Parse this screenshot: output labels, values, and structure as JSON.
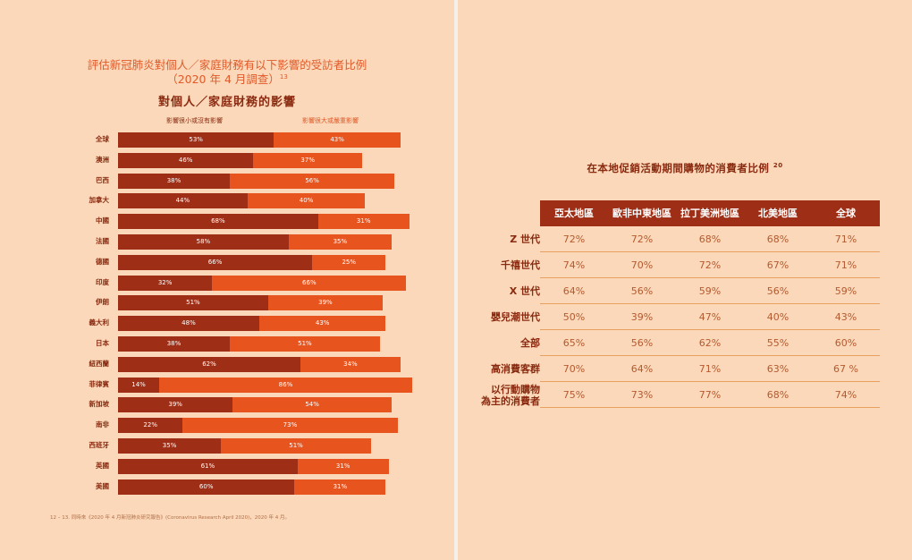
{
  "left": {
    "title_line1": "評估新冠肺炎對個人／家庭財務有以下影響的受訪者比例",
    "title_line2": "（2020 年 4 月調查）",
    "title_sup": "13",
    "chart_title": "對個人／家庭財務的影響",
    "footnote": "12 – 13. 同時來《2020 年 4 月新冠肺炎研究報告》(Coronavirus Research April 2020)，2020 年 4 月。"
  },
  "chart_data": {
    "type": "bar",
    "stacked": true,
    "orientation": "horizontal",
    "title": "對個人／家庭財務的影響",
    "legend_position": "top",
    "categories": [
      "全球",
      "澳洲",
      "巴西",
      "加拿大",
      "中國",
      "法國",
      "德國",
      "印度",
      "伊朗",
      "義大利",
      "日本",
      "紐西蘭",
      "菲律賓",
      "新加坡",
      "南非",
      "西班牙",
      "英國",
      "美國"
    ],
    "series": [
      {
        "name": "影響很小或沒有影響",
        "color": "#9e2e15",
        "values": [
          53,
          46,
          38,
          44,
          68,
          58,
          66,
          32,
          51,
          48,
          38,
          62,
          14,
          39,
          22,
          35,
          61,
          60
        ]
      },
      {
        "name": "影響很大或嚴重影響",
        "color": "#e8541e",
        "values": [
          43,
          37,
          56,
          40,
          31,
          35,
          25,
          66,
          39,
          43,
          51,
          34,
          86,
          54,
          73,
          51,
          31,
          31
        ]
      }
    ],
    "value_format": "{v}%"
  },
  "right": {
    "table_title": "在本地促銷活動期間購物的消費者比例",
    "table_title_sup": "20",
    "columns": [
      "亞太地區",
      "歐非中東地區",
      "拉丁美洲地區",
      "北美地區",
      "全球"
    ],
    "rows": [
      {
        "label": "Z 世代",
        "values": [
          "72%",
          "72%",
          "68%",
          "68%",
          "71%"
        ]
      },
      {
        "label": "千禧世代",
        "values": [
          "74%",
          "70%",
          "72%",
          "67%",
          "71%"
        ]
      },
      {
        "label": "X 世代",
        "values": [
          "64%",
          "56%",
          "59%",
          "56%",
          "59%"
        ]
      },
      {
        "label": "嬰兒潮世代",
        "values": [
          "50%",
          "39%",
          "47%",
          "40%",
          "43%"
        ]
      },
      {
        "label": "全部",
        "values": [
          "65%",
          "56%",
          "62%",
          "55%",
          "60%"
        ]
      },
      {
        "label": "高消費客群",
        "values": [
          "70%",
          "64%",
          "71%",
          "63%",
          "67 %"
        ]
      },
      {
        "label": "以行動購物\n為主的消費者",
        "values": [
          "75%",
          "73%",
          "77%",
          "68%",
          "74%"
        ]
      }
    ]
  }
}
